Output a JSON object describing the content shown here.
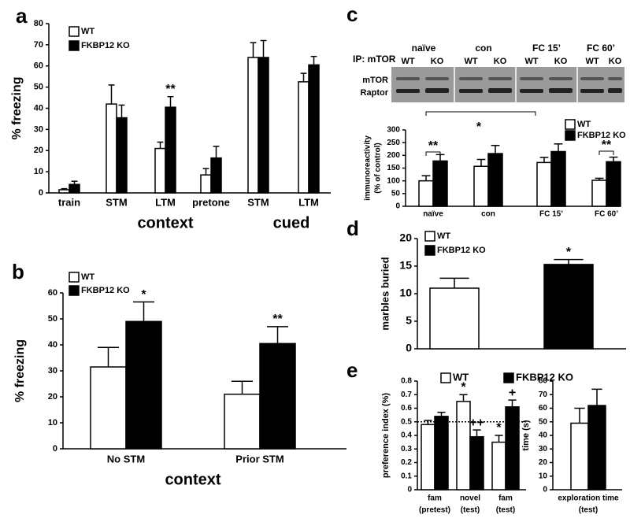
{
  "blot": {
    "label": "IP: mTOR",
    "groups": [
      "naïve",
      "con",
      "FC 15’",
      "FC 60’"
    ],
    "lanes": [
      "WT",
      "KO",
      "WT",
      "KO",
      "WT",
      "KO",
      "WT",
      "KO"
    ],
    "bands": [
      "mTOR",
      "Raptor"
    ]
  },
  "chart_data": [
    {
      "panel": "a",
      "type": "bar",
      "ylabel": "% freezing",
      "categories": [
        "train",
        "STM",
        "LTM",
        "pretone",
        "STM",
        "LTM"
      ],
      "groups": [
        "context",
        "cued"
      ],
      "series": [
        {
          "name": "WT",
          "color": "#ffffff",
          "values": [
            1.5,
            42,
            21,
            8.5,
            64,
            52.5
          ],
          "errors": [
            0.5,
            9,
            3,
            3,
            7,
            4
          ]
        },
        {
          "name": "FKBP12 KO",
          "color": "#000000",
          "values": [
            4,
            35.5,
            40.5,
            16.5,
            64,
            60.5
          ],
          "errors": [
            1.5,
            6,
            5,
            5.5,
            8,
            4
          ]
        }
      ],
      "ylim": [
        0,
        80
      ],
      "yticks": [
        0,
        10,
        20,
        30,
        40,
        50,
        60,
        70,
        80
      ],
      "annotations": [
        "**"
      ]
    },
    {
      "panel": "b",
      "type": "bar",
      "ylabel": "% freezing",
      "xlabel": "context",
      "categories": [
        "No STM",
        "Prior STM"
      ],
      "series": [
        {
          "name": "WT",
          "color": "#ffffff",
          "values": [
            31.5,
            21
          ],
          "errors": [
            7.5,
            5
          ]
        },
        {
          "name": "FKBP12 KO",
          "color": "#000000",
          "values": [
            49,
            40.5
          ],
          "errors": [
            7.5,
            6.5
          ]
        }
      ],
      "ylim": [
        0,
        60
      ],
      "yticks": [
        0,
        10,
        20,
        30,
        40,
        50,
        60
      ],
      "annotations": [
        "*",
        "**"
      ]
    },
    {
      "panel": "c",
      "type": "bar",
      "ylabel": [
        "immunoreactivity",
        "(% of control)"
      ],
      "categories": [
        "naïve",
        "con",
        "FC 15’",
        "FC 60’"
      ],
      "series": [
        {
          "name": "WT",
          "color": "#ffffff",
          "values": [
            100,
            157,
            172,
            102
          ],
          "errors": [
            20,
            27,
            20,
            8
          ]
        },
        {
          "name": "FKBP12 KO",
          "color": "#000000",
          "values": [
            178,
            207,
            215,
            175
          ],
          "errors": [
            25,
            32,
            30,
            18
          ]
        }
      ],
      "ylim": [
        0,
        300
      ],
      "yticks": [
        0,
        50,
        100,
        150,
        200,
        250,
        300
      ],
      "annotations": [
        "*",
        "**",
        "**"
      ]
    },
    {
      "panel": "d",
      "type": "bar",
      "ylabel": "marbles buried",
      "series": [
        {
          "name": "WT",
          "color": "#ffffff",
          "values": [
            11
          ],
          "errors": [
            1.8
          ]
        },
        {
          "name": "FKBP12 KO",
          "color": "#000000",
          "values": [
            15.3
          ],
          "errors": [
            0.9
          ]
        }
      ],
      "ylim": [
        0,
        20
      ],
      "yticks": [
        0,
        5,
        10,
        15,
        20
      ],
      "annotations": [
        "*"
      ]
    },
    {
      "panel": "e",
      "type": "bar",
      "ylabel": "preference index (%)",
      "categories": [
        [
          "fam",
          "(pretest)"
        ],
        [
          "novel",
          "(test)"
        ],
        [
          "fam",
          "(test)"
        ]
      ],
      "series": [
        {
          "name": "WT",
          "color": "#ffffff",
          "values": [
            0.48,
            0.65,
            0.35
          ],
          "errors": [
            0.03,
            0.05,
            0.05
          ]
        },
        {
          "name": "FKBP12 KO",
          "color": "#000000",
          "values": [
            0.54,
            0.39,
            0.61
          ],
          "errors": [
            0.03,
            0.05,
            0.05
          ]
        }
      ],
      "ylim": [
        0,
        0.8
      ],
      "yticks": [
        0,
        0.1,
        0.2,
        0.3,
        0.4,
        0.5,
        0.6,
        0.7,
        0.8
      ],
      "reference_line": 0.5,
      "annotations": [
        "*",
        "++",
        "*",
        "+"
      ]
    },
    {
      "type": "bar",
      "ylabel": "time (s)",
      "categories": [
        [
          "exploration time",
          "(test)"
        ]
      ],
      "series": [
        {
          "name": "WT",
          "color": "#ffffff",
          "values": [
            49
          ],
          "errors": [
            11
          ]
        },
        {
          "name": "FKBP12 KO",
          "color": "#000000",
          "values": [
            62
          ],
          "errors": [
            12
          ]
        }
      ],
      "ylim": [
        0,
        80
      ],
      "yticks": [
        0,
        10,
        20,
        30,
        40,
        50,
        60,
        70,
        80
      ]
    }
  ]
}
